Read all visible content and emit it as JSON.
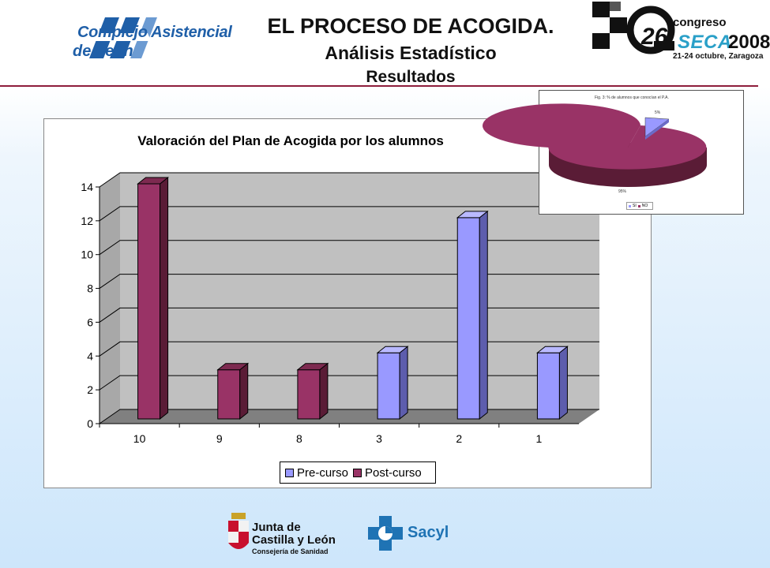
{
  "header": {
    "org_line1": "Complejo Asistencial",
    "org_line2": "de León",
    "title": "EL PROCESO DE ACOGIDA.",
    "subtitle": "Análisis Estadístico",
    "subtitle2": "Resultados",
    "congress": {
      "word": "congreso",
      "number": "26",
      "number_suffix": "o",
      "name": "SECA",
      "year": "2008",
      "dates": "21-24 octubre, Zaragoza"
    }
  },
  "chart_data": [
    {
      "type": "bar",
      "title": "Valoración del Plan de Acogida por los alumnos",
      "categories": [
        "10",
        "9",
        "8",
        "3",
        "2",
        "1"
      ],
      "series": [
        {
          "name": "Pre-curso",
          "color": "#9999ff",
          "values": [
            0,
            0,
            0,
            4,
            12,
            4
          ]
        },
        {
          "name": "Post-curso",
          "color": "#993366",
          "values": [
            14,
            3,
            3,
            0,
            0,
            0
          ]
        }
      ],
      "ylim": [
        0,
        14
      ],
      "yticks": [
        "0",
        "2",
        "4",
        "6",
        "8",
        "10",
        "12",
        "14"
      ],
      "grid": true,
      "legend_position": "bottom",
      "style": "3d"
    },
    {
      "type": "pie",
      "title": "Fig. 3: % de alumnos que conocían el P.A.",
      "slices": [
        {
          "name": "SI",
          "value": 5,
          "label": "5%",
          "color": "#9999ff"
        },
        {
          "name": "NO",
          "value": 95,
          "label": "95%",
          "color": "#993366"
        }
      ],
      "legend_position": "bottom",
      "style": "3d"
    }
  ],
  "footer": {
    "junta_line1": "Junta de",
    "junta_line2": "Castilla y León",
    "junta_line3": "Consejería de Sanidad",
    "sacyl": "Sacyl"
  }
}
